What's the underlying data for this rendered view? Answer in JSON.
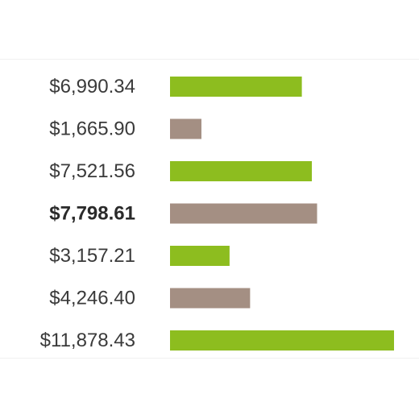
{
  "chart_data": {
    "type": "bar",
    "orientation": "horizontal",
    "title": "",
    "xlabel": "",
    "ylabel": "",
    "bars": [
      {
        "label": "$6,990.34",
        "value": 6990.34,
        "color": "#8dbd1f",
        "bold": false
      },
      {
        "label": "$1,665.90",
        "value": 1665.9,
        "color": "#a48f83",
        "bold": false
      },
      {
        "label": "$7,521.56",
        "value": 7521.56,
        "color": "#8dbd1f",
        "bold": false
      },
      {
        "label": "$7,798.61",
        "value": 7798.61,
        "color": "#a48f83",
        "bold": true
      },
      {
        "label": "$3,157.21",
        "value": 3157.21,
        "color": "#8dbd1f",
        "bold": false
      },
      {
        "label": "$4,246.40",
        "value": 4246.4,
        "color": "#a48f83",
        "bold": false
      },
      {
        "label": "$11,878.43",
        "value": 11878.43,
        "color": "#8dbd1f",
        "bold": false
      }
    ],
    "xlim": [
      0,
      11878.43
    ],
    "grid": false,
    "legend": "none"
  }
}
